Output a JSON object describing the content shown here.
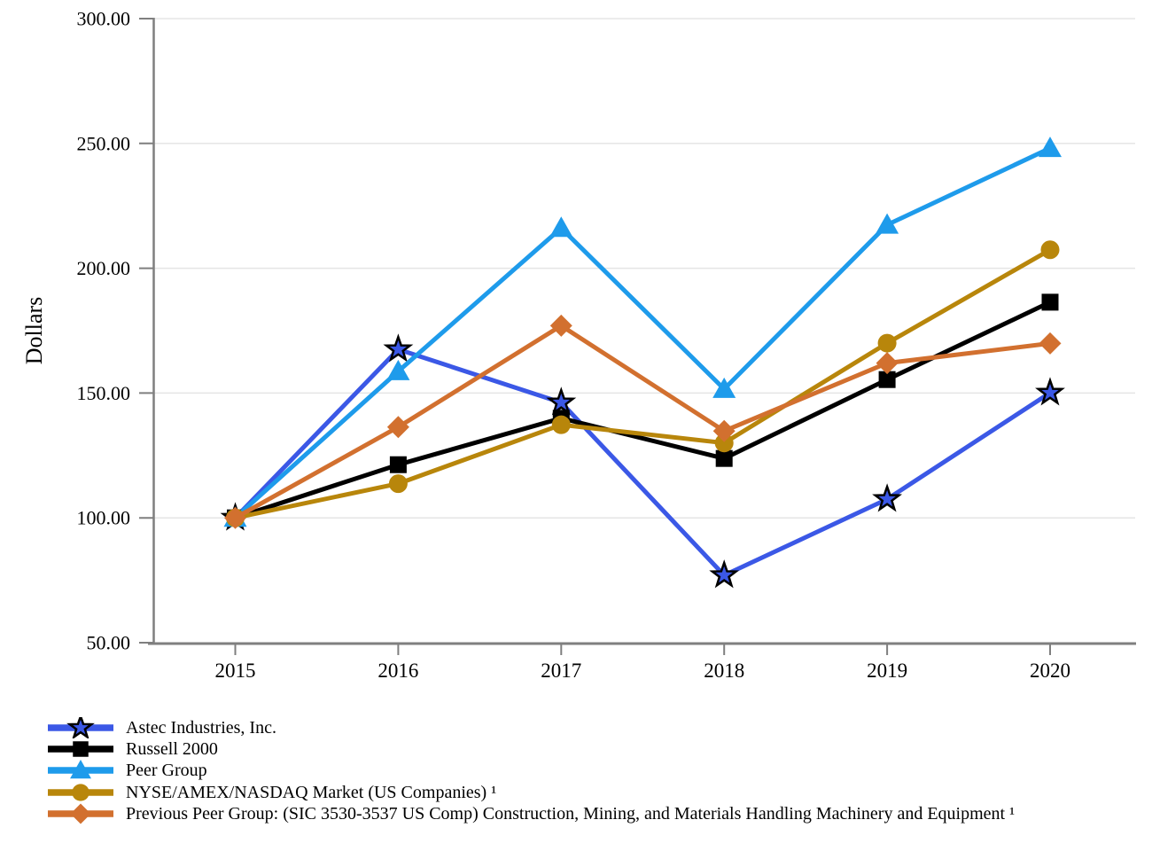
{
  "figure": {
    "y_axis_title": "Dollars"
  },
  "chart_data": {
    "type": "line",
    "title": "",
    "xlabel": "",
    "ylabel": "Dollars",
    "x": [
      "2015",
      "2016",
      "2017",
      "2018",
      "2019",
      "2020"
    ],
    "ylim": [
      50,
      300
    ],
    "yticks": [
      50,
      100,
      150,
      200,
      250,
      300
    ],
    "ytick_labels": [
      "50.00",
      "100.00",
      "150.00",
      "200.00",
      "250.00",
      "300.00"
    ],
    "grid": "horizontal",
    "legend_position": "bottom-left",
    "axis_color": "#7f7f7f",
    "gridline_color": "#e5e5e5",
    "series": [
      {
        "name": "Astec Industries, Inc.",
        "color": "#3b58e6",
        "marker": "star",
        "marker_outline": "#000000",
        "values": [
          100,
          167.5,
          146.2,
          77.0,
          107.5,
          150.1
        ]
      },
      {
        "name": "Russell 2000",
        "color": "#000000",
        "marker": "square",
        "values": [
          100,
          121.3,
          139.9,
          123.8,
          155.4,
          186.4
        ]
      },
      {
        "name": "Peer Group",
        "color": "#1e9beb",
        "marker": "triangle",
        "values": [
          100,
          158.7,
          216.1,
          151.6,
          217.4,
          248.1
        ]
      },
      {
        "name": "NYSE/AMEX/NASDAQ Market (US Companies) ¹",
        "color": "#b8860b",
        "marker": "circle",
        "values": [
          100,
          113.7,
          137.3,
          130.0,
          170.0,
          207.4
        ]
      },
      {
        "name": "Previous Peer Group: (SIC 3530-3537 US Comp) Construction, Mining, and Materials Handling Machinery and Equipment ¹",
        "color": "#d2702f",
        "marker": "diamond",
        "values": [
          100,
          136.4,
          177.0,
          134.8,
          162.0,
          169.9
        ]
      }
    ]
  }
}
